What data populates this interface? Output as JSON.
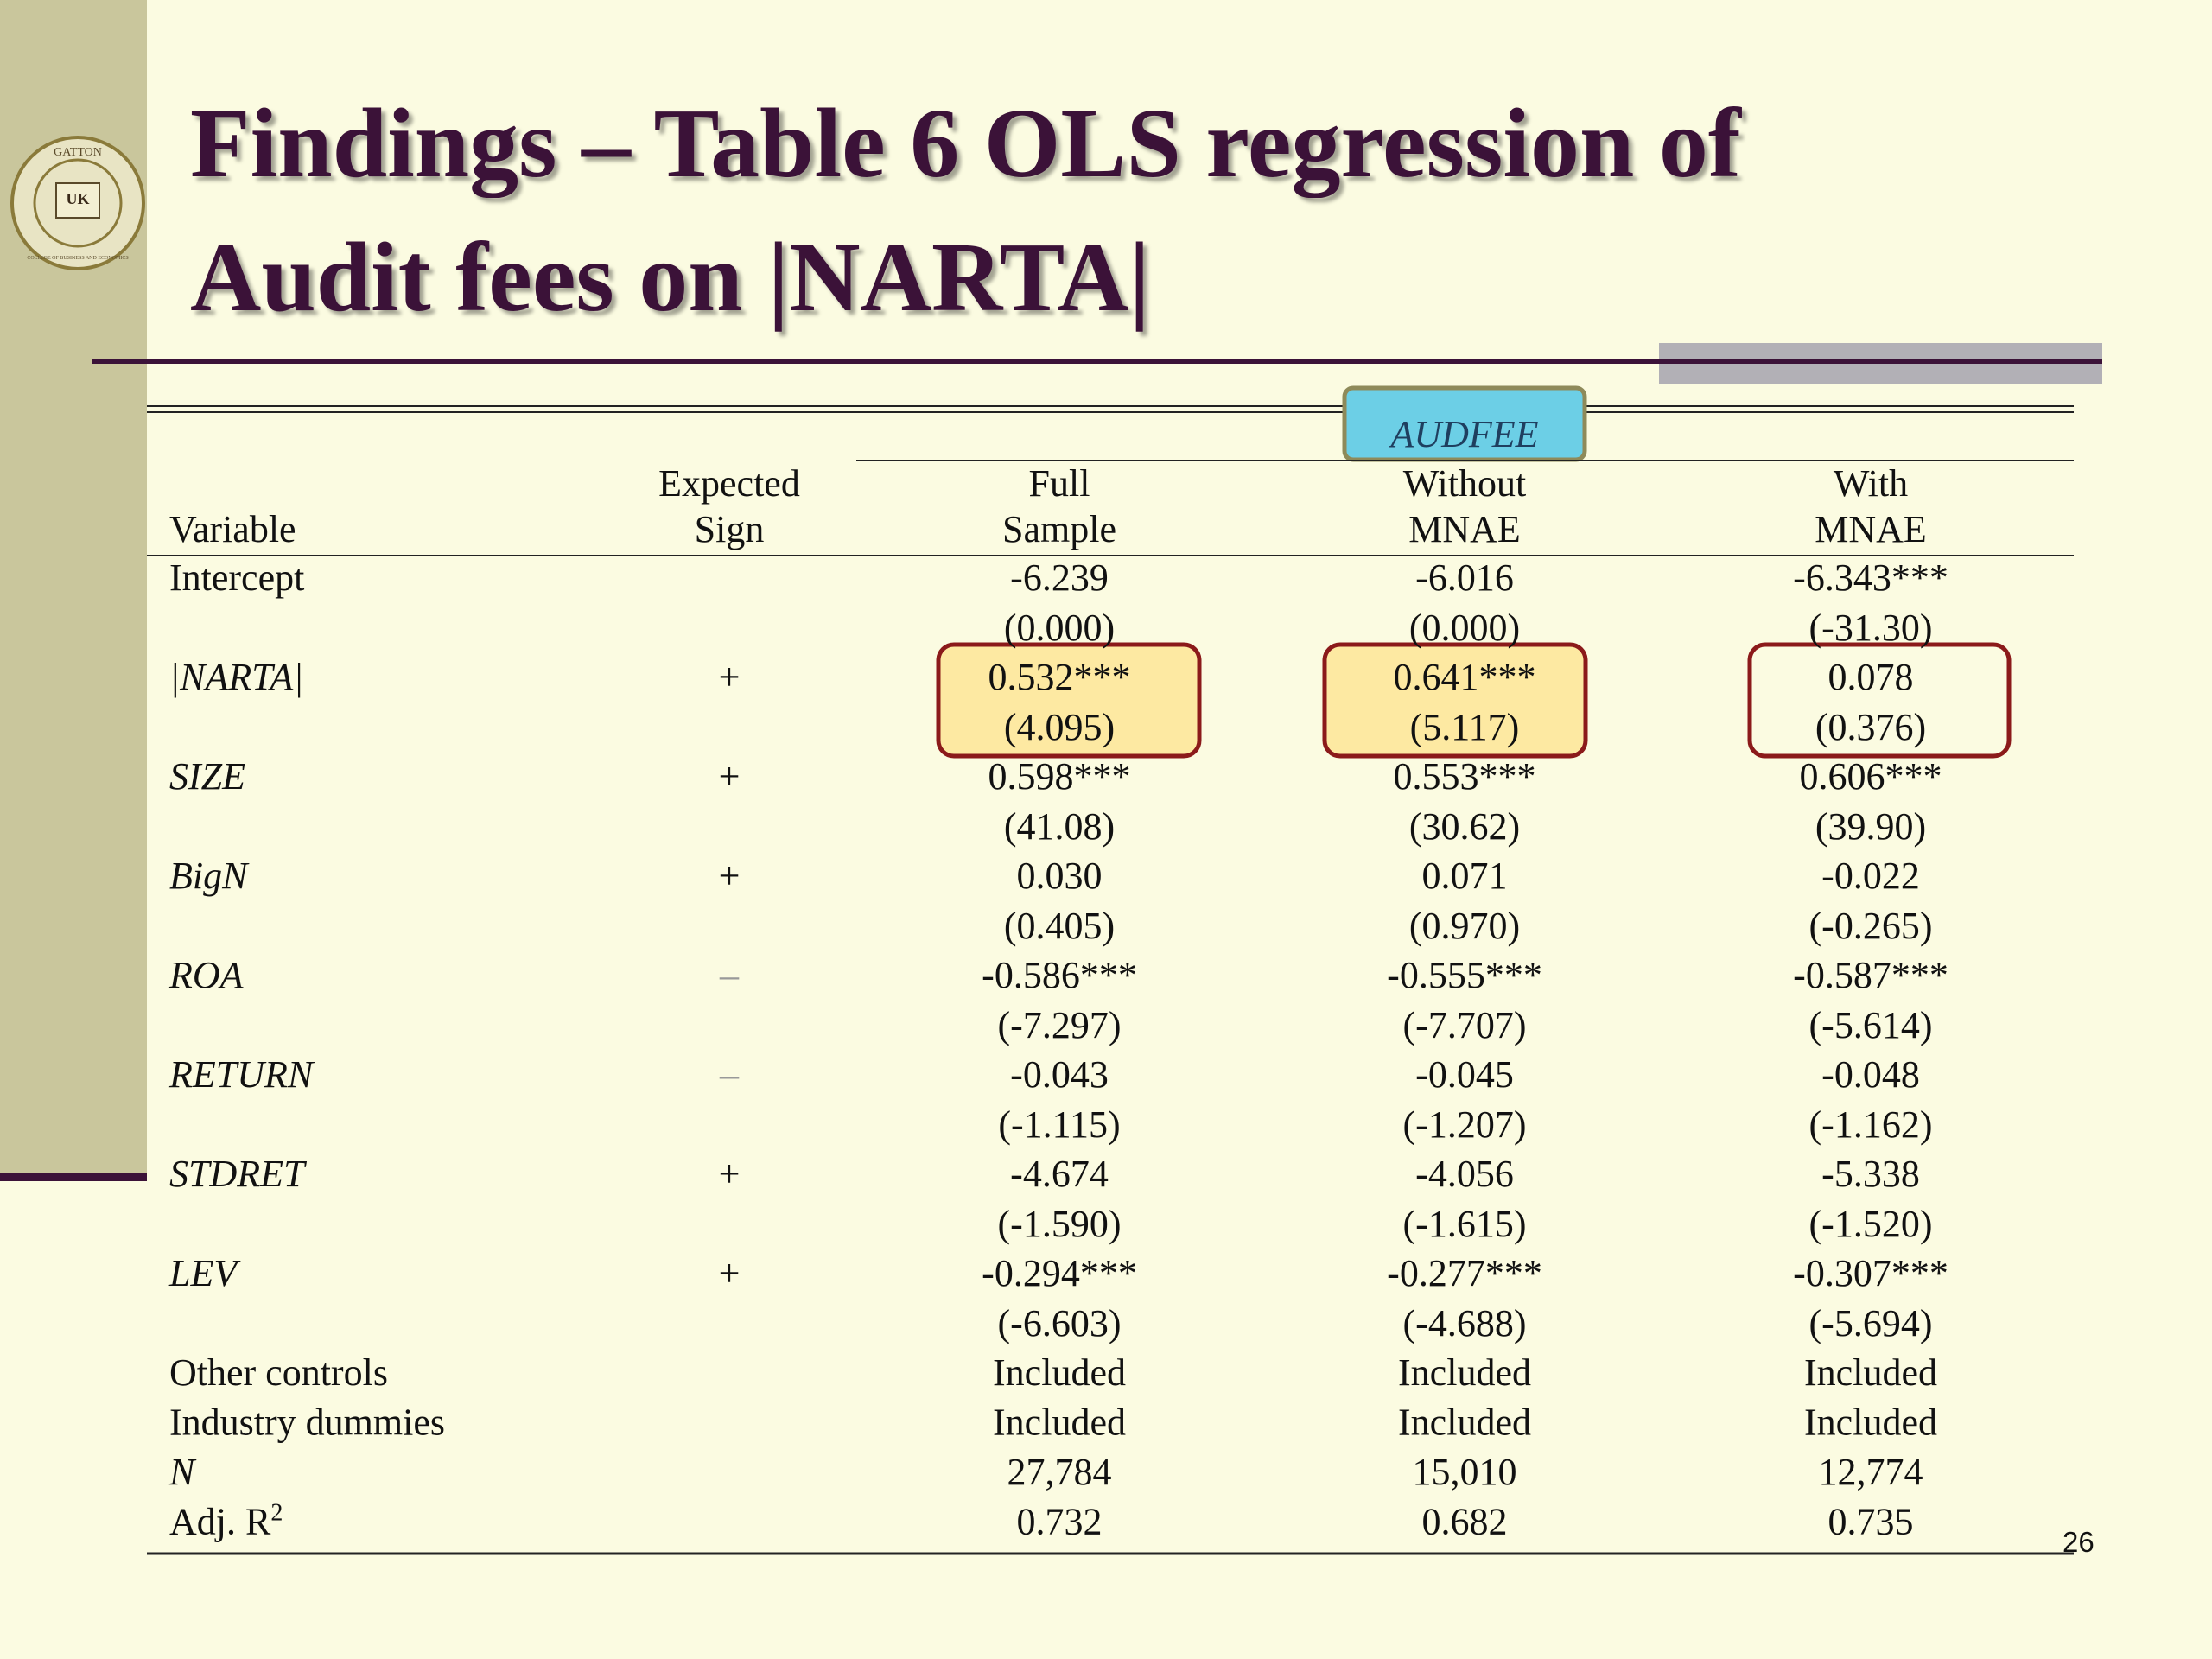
{
  "logo": {
    "top": "GATTON",
    "center": "UK",
    "bottom": "COLLEGE OF BUSINESS AND ECONOMICS"
  },
  "title": [
    "Findings – Table 6 OLS regression of",
    "Audit fees on |NARTA|"
  ],
  "table": {
    "group_label": "AUDFEE",
    "header": {
      "variable": "Variable",
      "sign": [
        "Expected",
        "Sign"
      ],
      "columns": [
        [
          "Full",
          "Sample"
        ],
        [
          "Without",
          "MNAE"
        ],
        [
          "With",
          "MNAE"
        ]
      ]
    },
    "rows": [
      {
        "label": "Intercept",
        "values": [
          "-6.239",
          "-6.016",
          "-6.343***"
        ],
        "tstats": [
          "(0.000)",
          "(0.000)",
          "(-31.30)"
        ]
      },
      {
        "label": "|NARTA|",
        "italic": true,
        "sign": "+",
        "values": [
          "0.532***",
          "0.641***",
          "0.078"
        ],
        "tstats": [
          "(4.095)",
          "(5.117)",
          "(0.376)"
        ]
      },
      {
        "label": "SIZE",
        "italic": true,
        "sign": "+",
        "values": [
          "0.598***",
          "0.553***",
          "0.606***"
        ],
        "tstats": [
          "(41.08)",
          "(30.62)",
          "(39.90)"
        ]
      },
      {
        "label": "BigN",
        "italic": true,
        "sign": "+",
        "values": [
          "0.030",
          "0.071",
          "-0.022"
        ],
        "tstats": [
          "(0.405)",
          "(0.970)",
          "(-0.265)"
        ]
      },
      {
        "label": "ROA",
        "italic": true,
        "sign": "–",
        "values": [
          "-0.586***",
          "-0.555***",
          "-0.587***"
        ],
        "tstats": [
          "(-7.297)",
          "(-7.707)",
          "(-5.614)"
        ]
      },
      {
        "label": "RETURN",
        "italic": true,
        "sign": "–",
        "values": [
          "-0.043",
          "-0.045",
          "-0.048"
        ],
        "tstats": [
          "(-1.115)",
          "(-1.207)",
          "(-1.162)"
        ]
      },
      {
        "label": "STDRET",
        "italic": true,
        "sign": "+",
        "values": [
          "-4.674",
          "-4.056",
          "-5.338"
        ],
        "tstats": [
          "(-1.590)",
          "(-1.615)",
          "(-1.520)"
        ]
      },
      {
        "label": "LEV",
        "italic": true,
        "sign": "+",
        "values": [
          "-0.294***",
          "-0.277***",
          "-0.307***"
        ],
        "tstats": [
          "(-6.603)",
          "(-4.688)",
          "(-5.694)"
        ]
      },
      {
        "label": "Other controls",
        "values": [
          "Included",
          "Included",
          "Included"
        ]
      },
      {
        "label": "Industry dummies",
        "values": [
          "Included",
          "Included",
          "Included"
        ]
      },
      {
        "label": "N",
        "italic": true,
        "values": [
          "27,784",
          "15,010",
          "12,774"
        ]
      },
      {
        "label": "Adj. R",
        "label_sup": "2",
        "values": [
          "0.732",
          "0.682",
          "0.735"
        ]
      }
    ]
  },
  "page_number": "26"
}
